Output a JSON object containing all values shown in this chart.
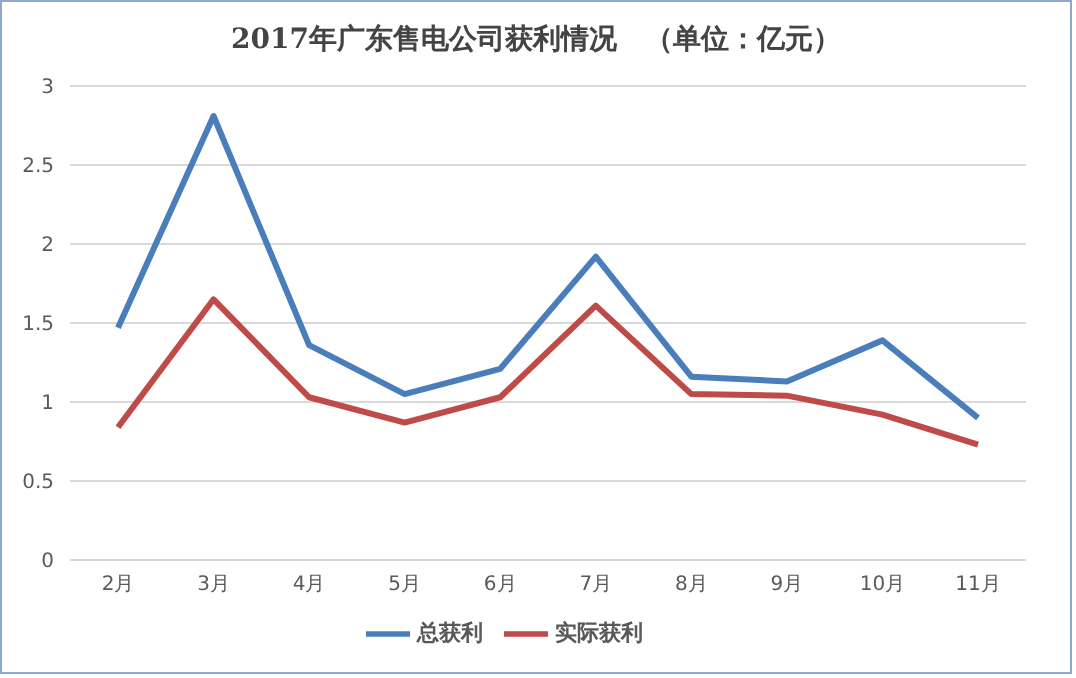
{
  "chart_data": {
    "type": "line",
    "title": "2017年广东售电公司获利情况　（单位：亿元）",
    "categories": [
      "2月",
      "3月",
      "4月",
      "5月",
      "6月",
      "7月",
      "8月",
      "9月",
      "10月",
      "11月"
    ],
    "series": [
      {
        "name": "总获利",
        "color": "#4a7ebb",
        "values": [
          1.47,
          2.81,
          1.36,
          1.05,
          1.21,
          1.92,
          1.16,
          1.13,
          1.39,
          0.9
        ]
      },
      {
        "name": "实际获利",
        "color": "#be4b48",
        "values": [
          0.84,
          1.65,
          1.03,
          0.87,
          1.03,
          1.61,
          1.05,
          1.04,
          0.92,
          0.73
        ]
      }
    ],
    "ylim": [
      0,
      3
    ],
    "yticks": [
      0,
      0.5,
      1,
      1.5,
      2,
      2.5,
      3
    ],
    "grid": "y",
    "legend": "bottom",
    "marker": "none",
    "line_style": "solid"
  }
}
